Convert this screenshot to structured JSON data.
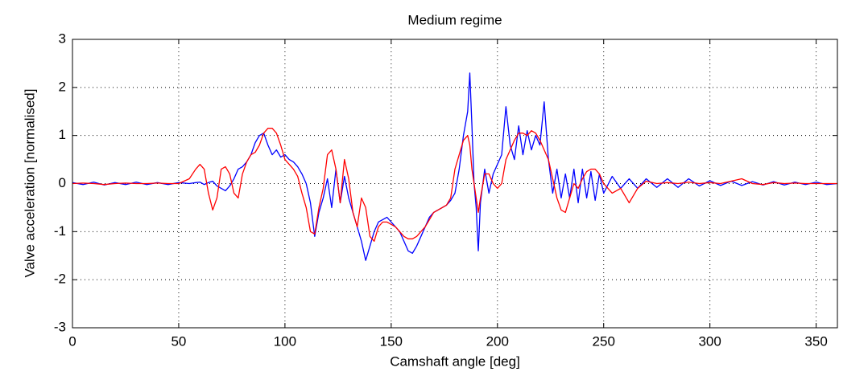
{
  "chart_data": {
    "type": "line",
    "title": "Medium regime",
    "xlabel": "Camshaft angle [deg]",
    "ylabel": "Valve acceleration [normalised]",
    "x": [
      0,
      5,
      10,
      15,
      20,
      25,
      30,
      35,
      40,
      45,
      50,
      55,
      58,
      60,
      62,
      64,
      66,
      68,
      70,
      72,
      74,
      76,
      78,
      80,
      82,
      84,
      86,
      88,
      90,
      92,
      94,
      96,
      98,
      100,
      102,
      104,
      106,
      108,
      110,
      112,
      114,
      116,
      118,
      120,
      122,
      124,
      126,
      128,
      130,
      132,
      134,
      136,
      138,
      140,
      142,
      144,
      146,
      148,
      150,
      152,
      154,
      156,
      158,
      160,
      162,
      164,
      166,
      168,
      170,
      172,
      174,
      176,
      178,
      180,
      182,
      184,
      186,
      187,
      188,
      189,
      190,
      191,
      192,
      194,
      196,
      198,
      200,
      202,
      204,
      206,
      208,
      210,
      212,
      214,
      216,
      218,
      220,
      222,
      224,
      226,
      228,
      230,
      232,
      234,
      236,
      238,
      240,
      242,
      244,
      246,
      248,
      250,
      254,
      258,
      262,
      266,
      270,
      275,
      280,
      285,
      290,
      295,
      300,
      305,
      310,
      315,
      320,
      325,
      330,
      335,
      340,
      345,
      350,
      355,
      360
    ],
    "series": [
      {
        "color": "#0000ff",
        "values": [
          0.02,
          -0.02,
          0.03,
          -0.03,
          0.02,
          -0.02,
          0.03,
          -0.02,
          0.02,
          -0.02,
          0.02,
          0.0,
          0.02,
          0.03,
          -0.02,
          0.02,
          0.05,
          -0.05,
          -0.1,
          -0.15,
          -0.05,
          0.1,
          0.3,
          0.35,
          0.45,
          0.6,
          0.85,
          1.0,
          1.05,
          0.8,
          0.6,
          0.7,
          0.55,
          0.6,
          0.5,
          0.45,
          0.35,
          0.2,
          0.0,
          -0.4,
          -1.1,
          -0.6,
          -0.3,
          0.1,
          -0.5,
          0.3,
          -0.4,
          0.15,
          -0.3,
          -0.6,
          -0.9,
          -1.2,
          -1.6,
          -1.3,
          -1.0,
          -0.8,
          -0.75,
          -0.7,
          -0.8,
          -0.9,
          -1.0,
          -1.2,
          -1.4,
          -1.45,
          -1.3,
          -1.1,
          -0.9,
          -0.7,
          -0.6,
          -0.55,
          -0.5,
          -0.45,
          -0.35,
          -0.2,
          0.3,
          1.0,
          1.5,
          2.3,
          1.2,
          0.0,
          -0.5,
          -1.4,
          -0.4,
          0.3,
          -0.2,
          0.2,
          0.4,
          0.6,
          1.6,
          0.8,
          0.5,
          1.2,
          0.6,
          1.1,
          0.7,
          1.0,
          0.8,
          1.7,
          0.5,
          -0.2,
          0.3,
          -0.3,
          0.2,
          -0.3,
          0.3,
          -0.4,
          0.3,
          -0.3,
          0.25,
          -0.35,
          0.2,
          -0.2,
          0.15,
          -0.1,
          0.1,
          -0.1,
          0.1,
          -0.08,
          0.1,
          -0.08,
          0.1,
          -0.05,
          0.06,
          -0.04,
          0.05,
          -0.04,
          0.04,
          -0.03,
          0.04,
          -0.03,
          0.03,
          -0.02,
          0.03,
          -0.02,
          0.0
        ]
      },
      {
        "color": "#ff0000",
        "values": [
          0,
          0.01,
          0,
          -0.02,
          0,
          0.01,
          0,
          0,
          0.01,
          0,
          0,
          0.1,
          0.3,
          0.4,
          0.3,
          -0.2,
          -0.55,
          -0.3,
          0.3,
          0.35,
          0.2,
          -0.2,
          -0.3,
          0.2,
          0.45,
          0.6,
          0.65,
          0.8,
          1.05,
          1.15,
          1.15,
          1.05,
          0.8,
          0.5,
          0.4,
          0.3,
          0.15,
          -0.2,
          -0.5,
          -1.0,
          -1.05,
          -0.5,
          -0.1,
          0.6,
          0.7,
          0.3,
          -0.4,
          0.5,
          0.1,
          -0.6,
          -0.9,
          -0.3,
          -0.5,
          -1.1,
          -1.2,
          -0.9,
          -0.8,
          -0.8,
          -0.85,
          -0.9,
          -1.0,
          -1.1,
          -1.15,
          -1.15,
          -1.1,
          -1.0,
          -0.9,
          -0.75,
          -0.6,
          -0.55,
          -0.5,
          -0.45,
          -0.3,
          0.3,
          0.6,
          0.9,
          1.0,
          0.8,
          0.3,
          0.0,
          -0.3,
          -0.6,
          -0.3,
          0.2,
          0.2,
          0.0,
          -0.1,
          0.0,
          0.5,
          0.7,
          0.9,
          1.05,
          1.05,
          1.0,
          1.1,
          1.05,
          0.9,
          0.7,
          0.5,
          0.1,
          -0.3,
          -0.55,
          -0.6,
          -0.3,
          0.0,
          -0.1,
          0.1,
          0.25,
          0.3,
          0.3,
          0.2,
          0.0,
          -0.2,
          -0.1,
          -0.4,
          -0.1,
          0.05,
          0.0,
          0.02,
          0,
          0.03,
          0,
          0.02,
          0,
          0.05,
          0.1,
          0.0,
          -0.02,
          0.02,
          0,
          0.01,
          0,
          0,
          0,
          0
        ]
      }
    ],
    "xlim": [
      0,
      360
    ],
    "xticks": [
      0,
      50,
      100,
      150,
      200,
      250,
      300,
      350
    ],
    "ylim": [
      -3,
      3
    ],
    "yticks": [
      -3,
      -2,
      -1,
      0,
      1,
      2,
      3
    ],
    "grid": true
  }
}
